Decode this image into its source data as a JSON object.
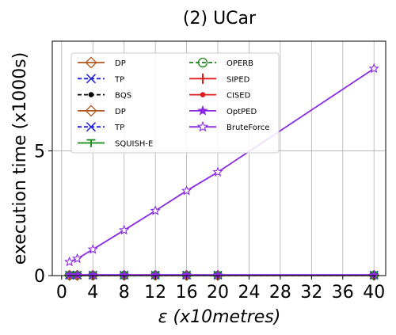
{
  "chart_data": {
    "type": "line",
    "title": "(2) UCar",
    "xlabel": "ε (x10metres)",
    "ylabel": "execution time (x1000s)",
    "xlim": [
      -1.2,
      41.5
    ],
    "ylim": [
      0,
      9.4
    ],
    "xticks": [
      0,
      4,
      8,
      12,
      16,
      20,
      24,
      28,
      32,
      36,
      40
    ],
    "yticks": [
      0,
      5
    ],
    "grid": true,
    "legend_position": "top-left",
    "legend_columns": 2,
    "x": [
      1,
      2,
      4,
      8,
      12,
      16,
      20,
      40
    ],
    "series": [
      {
        "name": "DP",
        "color": "#b5561c",
        "linestyle": "solid",
        "marker": "diamond-open",
        "values": [
          0.01,
          0.01,
          0.01,
          0.01,
          0.01,
          0.01,
          0.01,
          0.01
        ]
      },
      {
        "name": "TP",
        "color": "#1f1fd8",
        "linestyle": "dashed",
        "marker": "x",
        "values": [
          0.02,
          0.02,
          0.02,
          0.02,
          0.02,
          0.02,
          0.02,
          0.02
        ]
      },
      {
        "name": "BQS",
        "color": "#000000",
        "linestyle": "dashed",
        "marker": "dot",
        "values": [
          0.01,
          0.01,
          0.01,
          0.01,
          0.01,
          0.01,
          0.01,
          0.01
        ]
      },
      {
        "name": "DP",
        "color": "#b5561c",
        "linestyle": "solid",
        "marker": "diamond-open",
        "values": [
          0.01,
          0.01,
          0.01,
          0.01,
          0.01,
          0.01,
          0.01,
          0.01
        ]
      },
      {
        "name": "TP",
        "color": "#1f1fd8",
        "linestyle": "dashed",
        "marker": "x",
        "values": [
          0.02,
          0.02,
          0.02,
          0.02,
          0.02,
          0.02,
          0.02,
          0.02
        ]
      },
      {
        "name": "SQUISH-E",
        "color": "#138a13",
        "linestyle": "solid",
        "marker": "tri-down",
        "values": [
          0.01,
          0.01,
          0.01,
          0.01,
          0.01,
          0.01,
          0.01,
          0.01
        ]
      },
      {
        "name": "OPERB",
        "color": "#138a13",
        "linestyle": "dashed",
        "marker": "circle-open",
        "values": [
          0.01,
          0.01,
          0.01,
          0.01,
          0.01,
          0.01,
          0.01,
          0.01
        ]
      },
      {
        "name": "SIPED",
        "color": "#e31a1c",
        "linestyle": "solid",
        "marker": "plus",
        "values": [
          0.02,
          0.02,
          0.02,
          0.02,
          0.02,
          0.02,
          0.02,
          0.02
        ]
      },
      {
        "name": "CISED",
        "color": "#e31a1c",
        "linestyle": "solid",
        "marker": "dot",
        "values": [
          0.02,
          0.02,
          0.02,
          0.02,
          0.02,
          0.02,
          0.02,
          0.02
        ]
      },
      {
        "name": "OptPED",
        "color": "#8a2be2",
        "linestyle": "solid",
        "marker": "star-filled",
        "values": [
          0.03,
          0.03,
          0.03,
          0.03,
          0.03,
          0.03,
          0.03,
          0.03
        ]
      },
      {
        "name": "BruteForce",
        "color": "#8a2be2",
        "linestyle": "solid",
        "marker": "star-open",
        "values": [
          0.55,
          0.68,
          1.05,
          1.82,
          2.6,
          3.4,
          4.15,
          8.3
        ]
      }
    ]
  }
}
